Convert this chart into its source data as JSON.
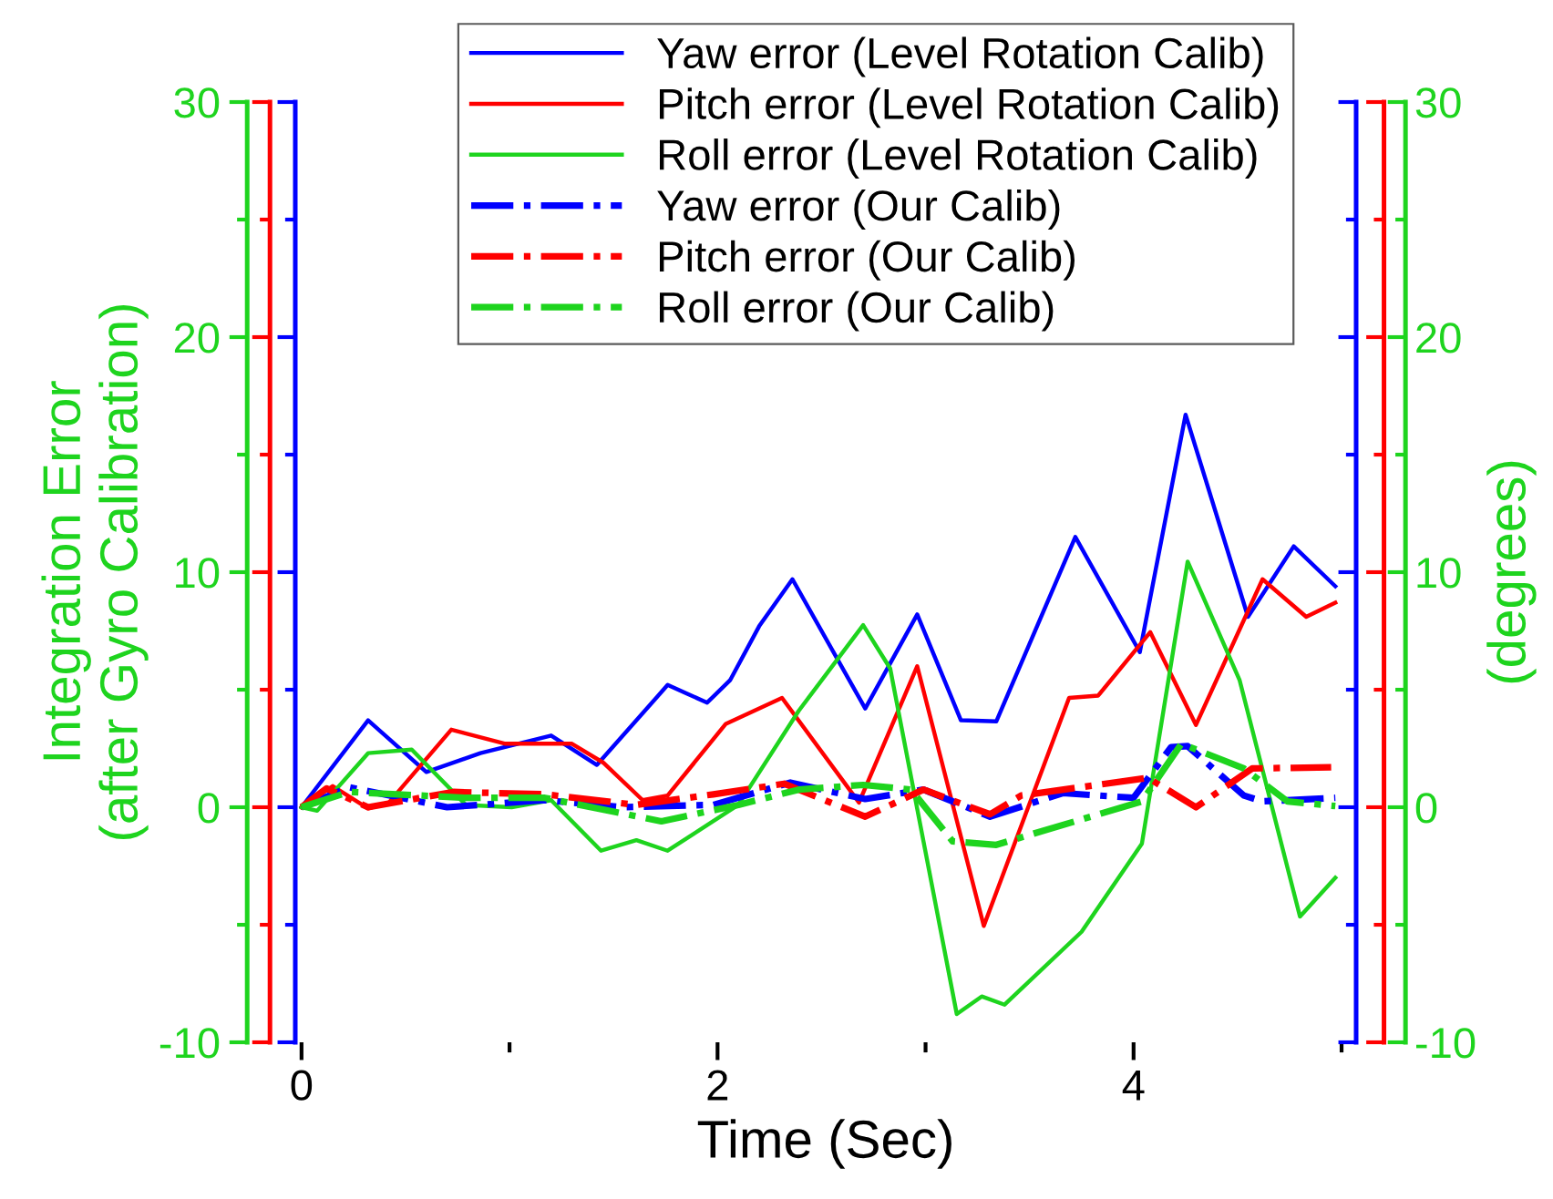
{
  "chart_data": {
    "type": "line",
    "xlabel": "Time (Sec)",
    "ylabel": "Integration Error\n(after Gyro Calibration)",
    "y2label": "(degrees)",
    "xlim": [
      -0.03,
      5.07
    ],
    "xticks": [
      0,
      2,
      4
    ],
    "ylim": [
      -10,
      30
    ],
    "yticks": [
      -10,
      0,
      10,
      20,
      30
    ],
    "y2lim": [
      -10,
      30
    ],
    "y2ticks": [
      -10,
      0,
      10,
      20,
      30
    ],
    "grid": false,
    "legend": "top",
    "marker": "none",
    "series": [
      {
        "name": "Yaw error (Level Rotation Calib)",
        "color": "#0000ff",
        "line_style": "solid",
        "x": [
          0,
          0.32,
          0.6,
          0.86,
          1.2,
          1.42,
          1.76,
          1.95,
          2.06,
          2.2,
          2.36,
          2.71,
          2.96,
          3.17,
          3.34,
          3.72,
          4.03,
          4.25,
          4.55,
          4.77,
          4.97
        ],
        "values": [
          0,
          3.7,
          1.5,
          2.3,
          3.05,
          1.8,
          5.2,
          4.45,
          5.4,
          7.7,
          9.7,
          4.2,
          8.2,
          3.7,
          3.65,
          11.5,
          6.6,
          16.7,
          8.1,
          11.1,
          9.4
        ]
      },
      {
        "name": "Pitch error (Level Rotation Calib)",
        "color": "#ff0000",
        "line_style": "solid",
        "x": [
          0,
          0.15,
          0.32,
          0.42,
          0.72,
          0.98,
          1.3,
          1.45,
          1.64,
          1.76,
          2.04,
          2.31,
          2.68,
          2.96,
          3.28,
          3.69,
          3.83,
          4.08,
          4.3,
          4.62,
          4.83,
          4.97
        ],
        "values": [
          0,
          0.9,
          -0.05,
          0.2,
          3.3,
          2.7,
          2.7,
          1.9,
          0.3,
          0.5,
          3.55,
          4.65,
          0.2,
          6.0,
          -5.05,
          4.65,
          4.75,
          7.45,
          3.5,
          9.7,
          8.1,
          8.7
        ]
      },
      {
        "name": "Roll error (Level Rotation Calib)",
        "color": "#1ed41e",
        "line_style": "solid",
        "x": [
          0,
          0.075,
          0.32,
          0.53,
          0.79,
          1.01,
          1.2,
          1.44,
          1.61,
          1.76,
          2.1,
          2.39,
          2.7,
          2.83,
          3.15,
          3.27,
          3.38,
          3.75,
          4.04,
          4.26,
          4.51,
          4.8,
          4.97
        ],
        "values": [
          0,
          -0.15,
          2.3,
          2.45,
          0.1,
          0,
          0.3,
          -1.85,
          -1.4,
          -1.85,
          0.1,
          4.1,
          7.75,
          5.9,
          -8.8,
          -8.05,
          -8.4,
          -5.3,
          -1.55,
          10.45,
          5.4,
          -4.65,
          -3.0
        ]
      },
      {
        "name": "Yaw error (Our Calib)",
        "color": "#0000ff",
        "line_style": "dashdot",
        "x": [
          0,
          0.23,
          0.7,
          1.17,
          1.54,
          1.98,
          2.35,
          2.71,
          2.99,
          3.31,
          3.66,
          4.0,
          4.18,
          4.26,
          4.53,
          4.62,
          4.97
        ],
        "values": [
          0,
          0.85,
          0,
          0.3,
          0,
          0.1,
          1.05,
          0.35,
          0.75,
          -0.4,
          0.6,
          0.4,
          2.55,
          2.6,
          0.5,
          0.25,
          0.4
        ]
      },
      {
        "name": "Pitch error (Our Calib)",
        "color": "#ff0000",
        "line_style": "dashdot",
        "x": [
          0,
          0.12,
          0.32,
          0.73,
          1.17,
          1.61,
          1.98,
          2.32,
          2.71,
          2.99,
          3.31,
          3.46,
          4.07,
          4.3,
          4.57,
          4.95
        ],
        "values": [
          0,
          0.8,
          0,
          0.65,
          0.55,
          0.1,
          0.55,
          1.0,
          -0.4,
          0.75,
          -0.3,
          0.5,
          1.25,
          0,
          1.65,
          1.7
        ]
      },
      {
        "name": "Roll error (Our Calib)",
        "color": "#1ed41e",
        "line_style": "dashdot",
        "x": [
          0,
          0.23,
          0.79,
          1.17,
          1.73,
          2.1,
          2.39,
          2.7,
          2.93,
          3.13,
          3.34,
          4.04,
          4.23,
          4.53,
          4.74,
          4.97
        ],
        "values": [
          0,
          0.65,
          0.4,
          0.4,
          -0.6,
          0.1,
          0.75,
          0.95,
          0.75,
          -1.45,
          -1.6,
          0.25,
          2.7,
          1.65,
          0.25,
          0.05
        ]
      }
    ]
  }
}
